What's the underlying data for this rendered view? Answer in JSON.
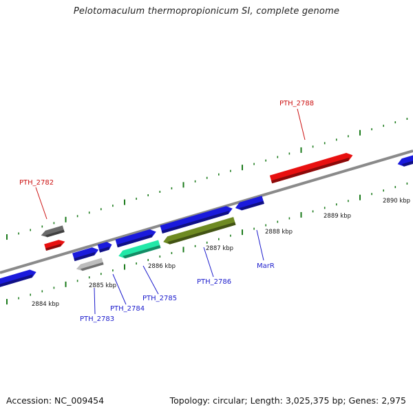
{
  "title": "Pelotomaculum thermopropionicum SI, complete genome",
  "footer": {
    "accession": "Accession: NC_009454",
    "summary": "Topology: circular; Length: 3,025,375 bp; Genes: 2,975"
  },
  "colors": {
    "backbone": "#8a8a8a",
    "tick": "#1a7a1a",
    "gene_blue": "#1a1adc",
    "gene_red": "#e81010",
    "gene_gray_dark": "#6a6a6a",
    "gene_gray_light": "#bdbdbd",
    "gene_aqua": "#22e8a8",
    "gene_olive": "#6e8a22",
    "label_blue": "#1a1acc",
    "label_red": "#cc1010"
  },
  "scale_labels": [
    "2884 kbp",
    "2885 kbp",
    "2886 kbp",
    "2887 kbp",
    "2888 kbp",
    "2889 kbp",
    "2890 kbp"
  ],
  "gene_labels": [
    {
      "text": "PTH_2782",
      "color": "red"
    },
    {
      "text": "PTH_2783",
      "color": "blue"
    },
    {
      "text": "PTH_2784",
      "color": "blue"
    },
    {
      "text": "PTH_2785",
      "color": "blue"
    },
    {
      "text": "PTH_2786",
      "color": "blue"
    },
    {
      "text": "MarR",
      "color": "blue"
    },
    {
      "text": "PTH_2788",
      "color": "red"
    }
  ]
}
